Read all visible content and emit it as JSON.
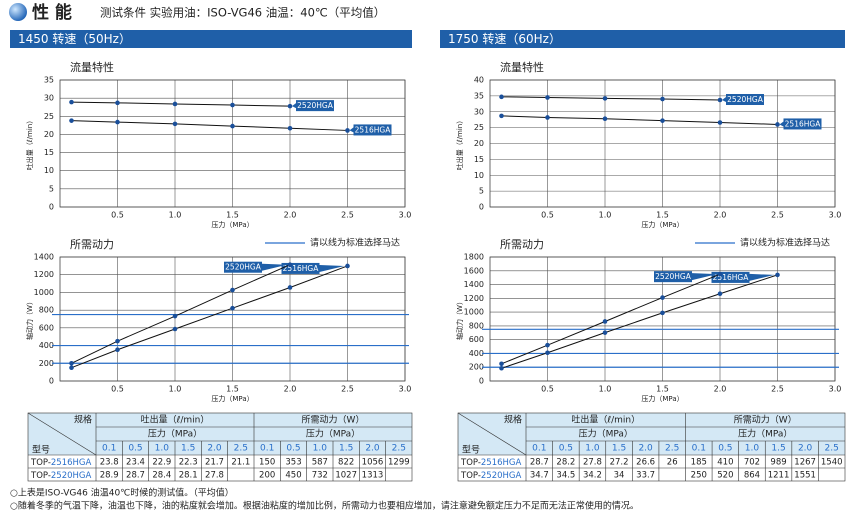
{
  "header": {
    "title": "性 能",
    "subtitle": "测试条件 实验用油：ISO-VG46 油温：40℃（平均值）"
  },
  "panels": [
    {
      "title": "1450 转速（50Hz）",
      "flow_chart": {
        "type": "line",
        "title": "流量特性",
        "xlabel": "压力（MPa）",
        "ylabel": "吐出量（ℓ/min）",
        "xlim": [
          0,
          3
        ],
        "xticks": [
          0.5,
          {
            "value": 1,
            "label": "1.0"
          },
          1.5,
          {
            "value": 2,
            "label": "2.0"
          },
          2.5,
          {
            "value": 3,
            "label": "3.0"
          }
        ],
        "ylim": [
          0,
          35
        ],
        "yticks": [
          0,
          5,
          10,
          15,
          20,
          25,
          30,
          35
        ]
      },
      "power_chart": {
        "type": "line",
        "title": "所需动力",
        "xlabel": "压力（MPa）",
        "ylabel": "轴动力（W）",
        "xlim": [
          0,
          3
        ],
        "xticks": [
          0.5,
          {
            "value": 1,
            "label": "1.0"
          },
          1.5,
          {
            "value": 2,
            "label": "2.0"
          },
          2.5,
          {
            "value": 3,
            "label": "3.0"
          }
        ],
        "ylim": [
          0,
          1400
        ],
        "yticks": [
          0,
          200,
          400,
          600,
          800,
          1000,
          1200,
          1400
        ],
        "motor_lines": [
          200,
          400,
          750
        ],
        "motor_legend": "请以线为标准选择马达"
      },
      "table": {
        "spec": "规格",
        "model": "型号",
        "flow_header": "吐出量（ℓ/min）",
        "power_header": "所需动力（W）",
        "pressure_header": "压力（MPa）",
        "pressures": [
          0.1,
          0.5,
          {
            "value": 1,
            "label": "1.0"
          },
          1.5,
          {
            "value": 2,
            "label": "2.0"
          },
          2.5
        ],
        "rows": [
          {
            "prefix": "TOP-",
            "model": "2516HGA",
            "flow": [
              23.8,
              23.4,
              22.9,
              22.3,
              21.7,
              21.1
            ],
            "power": [
              150,
              353,
              587,
              822,
              1056,
              1299
            ]
          },
          {
            "prefix": "TOP-",
            "model": "2520HGA",
            "flow": [
              28.9,
              28.7,
              28.4,
              28.1,
              27.8
            ],
            "power": [
              200,
              450,
              732,
              1027,
              1313
            ]
          }
        ]
      }
    },
    {
      "title": "1750 转速（60Hz）",
      "flow_chart": {
        "type": "line",
        "title": "流量特性",
        "xlabel": "压力（MPa）",
        "ylabel": "吐出量（ℓ/min）",
        "xlim": [
          0,
          3
        ],
        "xticks": [
          0.5,
          {
            "value": 1,
            "label": "1.0"
          },
          1.5,
          {
            "value": 2,
            "label": "2.0"
          },
          2.5,
          {
            "value": 3,
            "label": "3.0"
          }
        ],
        "ylim": [
          0,
          40
        ],
        "yticks": [
          0,
          5,
          10,
          15,
          20,
          25,
          30,
          35,
          40
        ]
      },
      "power_chart": {
        "type": "line",
        "title": "所需动力",
        "xlabel": "压力（MPa）",
        "ylabel": "轴动力（W）",
        "xlim": [
          0,
          3
        ],
        "xticks": [
          0.5,
          {
            "value": 1,
            "label": "1.0"
          },
          1.5,
          {
            "value": 2,
            "label": "2.0"
          },
          2.5,
          {
            "value": 3,
            "label": "3.0"
          }
        ],
        "ylim": [
          0,
          1800
        ],
        "yticks": [
          0,
          200,
          400,
          600,
          800,
          1000,
          1200,
          1400,
          1600,
          1800
        ],
        "motor_lines": [
          200,
          400,
          750
        ],
        "motor_legend": "请以线为标准选择马达"
      },
      "table": {
        "spec": "规格",
        "model": "型号",
        "flow_header": "吐出量（ℓ/min）",
        "power_header": "所需动力（W）",
        "pressure_header": "压力（MPa）",
        "pressures": [
          0.1,
          0.5,
          {
            "value": 1,
            "label": "1.0"
          },
          1.5,
          {
            "value": 2,
            "label": "2.0"
          },
          2.5
        ],
        "rows": [
          {
            "prefix": "TOP-",
            "model": "2516HGA",
            "flow": [
              28.7,
              28.2,
              27.8,
              27.2,
              26.6,
              26.0
            ],
            "power": [
              185,
              410,
              702,
              989,
              1267,
              1540
            ]
          },
          {
            "prefix": "TOP-",
            "model": "2520HGA",
            "flow": [
              34.7,
              34.5,
              34.2,
              34.0,
              33.7
            ],
            "power": [
              250,
              520,
              864,
              1211,
              1551
            ]
          }
        ]
      }
    }
  ],
  "footer": [
    "○上表是ISO-VG46 油温40℃时候的测试值。（平均值）",
    "○随着冬季的气温下降，油温也下降，油的粘度就会增加。根据油粘度的增加比例，所需动力也要相应增加，请注意避免额定压力不足而无法正常使用的情况。"
  ]
}
